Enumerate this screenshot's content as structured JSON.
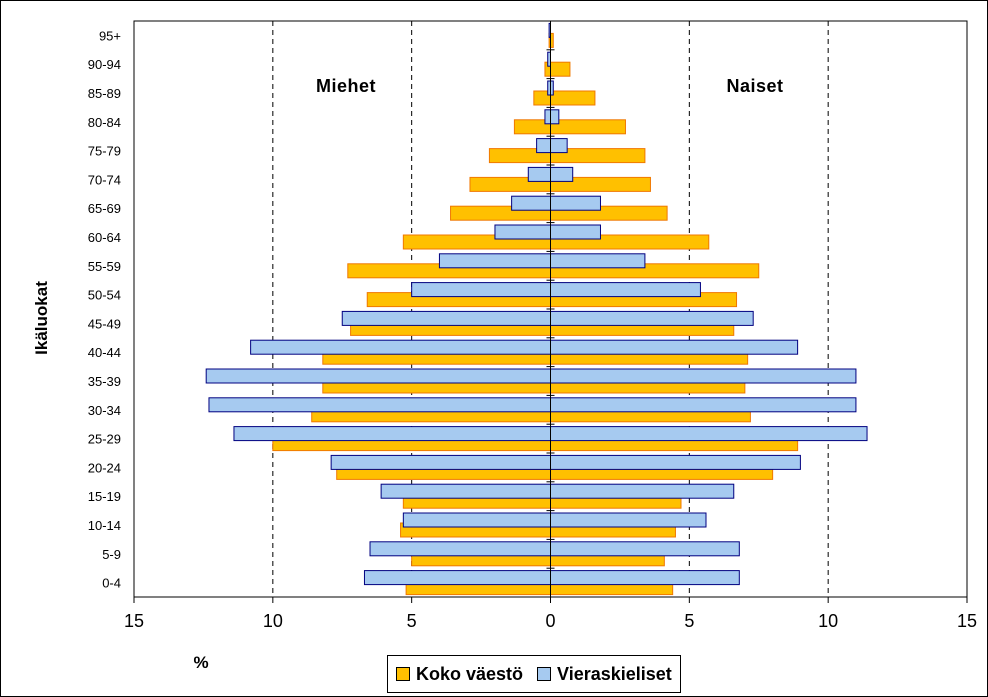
{
  "chart_data": {
    "type": "bar",
    "orientation": "horizontal",
    "layout": "population-pyramid",
    "categories": [
      "0-4",
      "5-9",
      "10-14",
      "15-19",
      "20-24",
      "25-29",
      "30-34",
      "35-39",
      "40-44",
      "45-49",
      "50-54",
      "55-59",
      "60-64",
      "65-69",
      "70-74",
      "75-79",
      "80-84",
      "85-89",
      "90-94",
      "95+"
    ],
    "series": [
      {
        "name": "Koko väestö",
        "color": "#FFC000",
        "edge": "#F07800",
        "men": [
          5.2,
          5.0,
          5.4,
          5.3,
          7.7,
          10.0,
          8.6,
          8.2,
          8.2,
          7.2,
          6.6,
          7.3,
          5.3,
          3.6,
          2.9,
          2.2,
          1.3,
          0.6,
          0.2,
          0.05
        ],
        "women": [
          4.4,
          4.1,
          4.5,
          4.7,
          8.0,
          8.9,
          7.2,
          7.0,
          7.1,
          6.6,
          6.7,
          7.5,
          5.7,
          4.2,
          3.6,
          3.4,
          2.7,
          1.6,
          0.7,
          0.1
        ]
      },
      {
        "name": "Vieraskieliset",
        "color": "#A6CAF0",
        "edge": "#000080",
        "men": [
          6.7,
          6.5,
          5.3,
          6.1,
          7.9,
          11.4,
          12.3,
          12.4,
          10.8,
          7.5,
          5.0,
          4.0,
          2.0,
          1.4,
          0.8,
          0.5,
          0.2,
          0.1,
          0.1,
          0.05
        ],
        "women": [
          6.8,
          6.8,
          5.6,
          6.6,
          9.0,
          11.4,
          11.0,
          11.0,
          8.9,
          7.3,
          5.4,
          3.4,
          1.8,
          1.8,
          0.8,
          0.6,
          0.3,
          0.1,
          0.0,
          0.0
        ]
      }
    ],
    "xlim": [
      -15,
      15
    ],
    "x_ticks": [
      -15,
      -10,
      -5,
      0,
      5,
      10,
      15
    ],
    "x_tick_labels": [
      "15",
      "10",
      "5",
      "0",
      "5",
      "10",
      "15"
    ],
    "xlabel": "%",
    "ylabel": "Ikäluokat",
    "region_labels": {
      "left": "Miehet",
      "right": "Naiset"
    },
    "grid": "vertical dashed lines at ±5 and ±10",
    "legend_position": "bottom"
  }
}
